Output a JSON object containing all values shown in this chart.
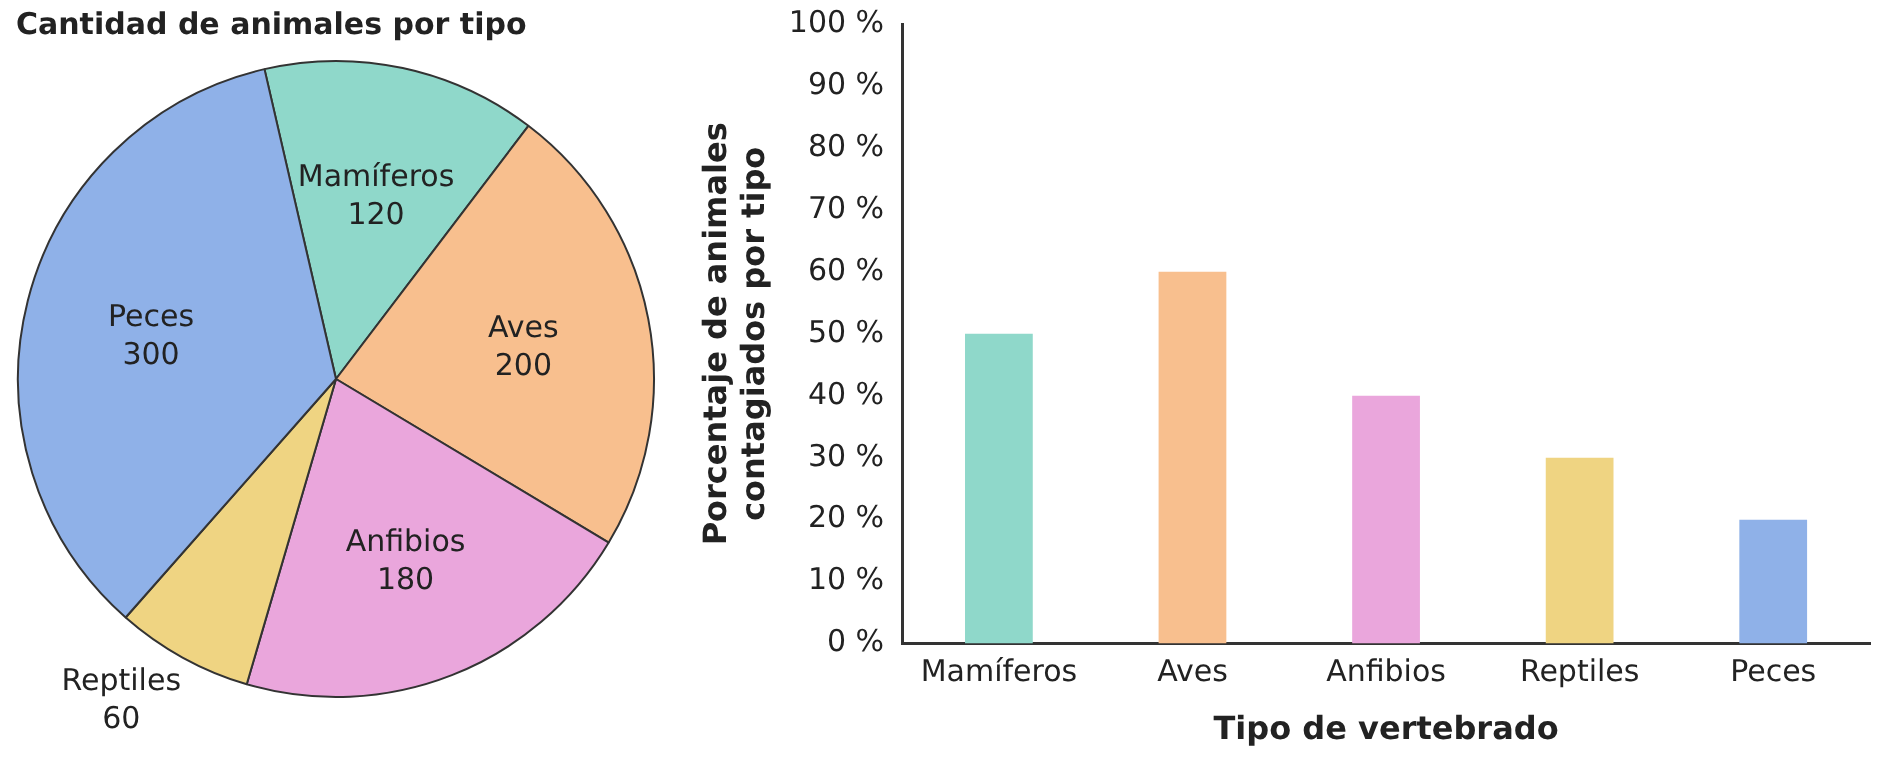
{
  "chart_data": [
    {
      "type": "pie",
      "title": "Cantidad de animales por tipo",
      "categories": [
        "Mamíferos",
        "Aves",
        "Anfibios",
        "Reptiles",
        "Peces"
      ],
      "values": [
        120,
        200,
        180,
        60,
        300
      ],
      "colors": [
        "#8fd8ca",
        "#f8bf8e",
        "#eaa6dc",
        "#efd482",
        "#8fb1e8"
      ],
      "data_labels": true,
      "legend": false
    },
    {
      "type": "bar",
      "categories": [
        "Mamíferos",
        "Aves",
        "Anfibios",
        "Reptiles",
        "Peces"
      ],
      "values": [
        50,
        60,
        40,
        30,
        20
      ],
      "colors": [
        "#8fd8ca",
        "#f8bf8e",
        "#eaa6dc",
        "#efd482",
        "#8fb1e8"
      ],
      "xlabel": "Tipo de vertebrado",
      "ylabel": "Porcentaje de animales contagiados por tipo",
      "ylim": [
        0,
        100
      ],
      "yticks": [
        {
          "value": 0,
          "label": "0 %"
        },
        {
          "value": 10,
          "label": "10 %"
        },
        {
          "value": 20,
          "label": "20 %"
        },
        {
          "value": 30,
          "label": "30 %"
        },
        {
          "value": 40,
          "label": "40 %"
        },
        {
          "value": 50,
          "label": "50 %"
        },
        {
          "value": 60,
          "label": "60 %"
        },
        {
          "value": 70,
          "label": "70 %"
        },
        {
          "value": 80,
          "label": "80 %"
        },
        {
          "value": 90,
          "label": "90 %"
        },
        {
          "value": 100,
          "label": "100 %"
        }
      ],
      "grid": false,
      "legend": false
    }
  ]
}
